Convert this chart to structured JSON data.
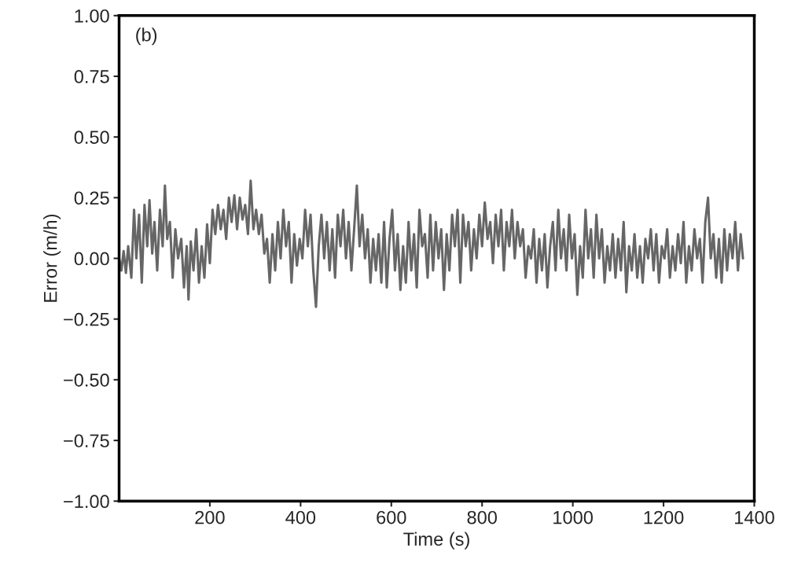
{
  "chart_data": {
    "type": "line",
    "xlabel": "Time (s)",
    "ylabel": "Error (m/h)",
    "annotations": [
      "(b)"
    ],
    "xlim": [
      0,
      1400
    ],
    "xticks": [
      200,
      400,
      600,
      800,
      1000,
      1200,
      1400
    ],
    "ylim": [
      -1,
      1
    ],
    "yticks": [
      {
        "value": -1,
        "label": "−1.00"
      },
      {
        "value": -0.75,
        "label": "−0.75"
      },
      {
        "value": -0.5,
        "label": "−0.50"
      },
      {
        "value": -0.25,
        "label": "−0.25"
      },
      {
        "value": 0,
        "label": "0.00"
      },
      {
        "value": 0.25,
        "label": "0.25"
      },
      {
        "value": 0.5,
        "label": "0.50"
      },
      {
        "value": 0.75,
        "label": "0.75"
      },
      {
        "value": 1,
        "label": "1.00"
      }
    ],
    "grid": false,
    "legend": false,
    "line_style": "solid",
    "marker": "none",
    "series": [
      {
        "color": "#666666",
        "x": [
          0,
          5,
          10,
          15,
          20,
          27,
          33,
          38,
          44,
          50,
          56,
          62,
          67,
          73,
          78,
          84,
          90,
          96,
          101,
          106,
          112,
          118,
          124,
          130,
          137,
          143,
          149,
          153,
          158,
          164,
          170,
          176,
          182,
          188,
          194,
          200,
          206,
          212,
          218,
          224,
          230,
          236,
          242,
          248,
          254,
          260,
          266,
          272,
          278,
          284,
          290,
          296,
          302,
          308,
          314,
          320,
          326,
          332,
          338,
          344,
          350,
          356,
          362,
          368,
          374,
          380,
          386,
          392,
          398,
          404,
          410,
          416,
          422,
          428,
          434,
          440,
          446,
          452,
          458,
          464,
          470,
          476,
          482,
          488,
          494,
          500,
          506,
          512,
          518,
          524,
          530,
          536,
          542,
          548,
          554,
          560,
          566,
          572,
          578,
          584,
          590,
          596,
          602,
          608,
          614,
          620,
          626,
          632,
          638,
          644,
          650,
          656,
          662,
          668,
          674,
          680,
          686,
          692,
          698,
          704,
          710,
          716,
          722,
          728,
          734,
          740,
          746,
          752,
          758,
          764,
          770,
          776,
          782,
          788,
          794,
          800,
          806,
          812,
          818,
          824,
          830,
          836,
          842,
          848,
          854,
          860,
          866,
          872,
          878,
          884,
          890,
          896,
          902,
          908,
          914,
          920,
          926,
          932,
          938,
          944,
          950,
          956,
          962,
          968,
          974,
          980,
          986,
          992,
          998,
          1004,
          1010,
          1016,
          1022,
          1028,
          1034,
          1040,
          1046,
          1052,
          1058,
          1064,
          1070,
          1076,
          1082,
          1088,
          1094,
          1100,
          1106,
          1112,
          1118,
          1124,
          1130,
          1136,
          1142,
          1148,
          1154,
          1160,
          1166,
          1172,
          1178,
          1184,
          1190,
          1196,
          1202,
          1208,
          1214,
          1220,
          1226,
          1232,
          1238,
          1244,
          1250,
          1256,
          1262,
          1268,
          1274,
          1280,
          1286,
          1292,
          1298,
          1304,
          1310,
          1316,
          1322,
          1328,
          1334,
          1340,
          1346,
          1352,
          1358,
          1364,
          1370,
          1375
        ],
        "values": [
          0.0,
          -0.05,
          0.03,
          -0.06,
          0.05,
          -0.08,
          0.2,
          0.0,
          0.18,
          -0.1,
          0.22,
          0.05,
          0.24,
          0.02,
          0.15,
          -0.05,
          0.2,
          0.05,
          0.3,
          0.08,
          0.15,
          -0.08,
          0.12,
          0.0,
          0.08,
          -0.12,
          0.05,
          -0.17,
          0.07,
          -0.05,
          0.12,
          -0.1,
          0.05,
          -0.08,
          0.14,
          -0.02,
          0.2,
          0.1,
          0.22,
          0.12,
          0.2,
          0.08,
          0.25,
          0.15,
          0.26,
          0.12,
          0.25,
          0.16,
          0.22,
          0.1,
          0.32,
          0.12,
          0.2,
          0.1,
          0.18,
          0.02,
          0.08,
          -0.1,
          0.1,
          -0.05,
          0.15,
          0.0,
          0.2,
          0.05,
          0.15,
          -0.1,
          0.1,
          -0.03,
          0.08,
          0.0,
          0.2,
          0.05,
          0.18,
          -0.05,
          -0.2,
          0.05,
          0.18,
          0.0,
          0.15,
          -0.05,
          0.12,
          -0.08,
          0.18,
          0.05,
          0.2,
          0.0,
          0.15,
          -0.05,
          0.12,
          0.3,
          0.05,
          0.18,
          0.0,
          0.12,
          -0.1,
          0.08,
          -0.05,
          0.1,
          -0.1,
          0.15,
          -0.12,
          0.08,
          0.2,
          -0.05,
          0.1,
          -0.13,
          0.05,
          -0.1,
          0.15,
          -0.05,
          0.1,
          -0.12,
          0.2,
          0.05,
          0.1,
          -0.08,
          0.18,
          -0.05,
          0.15,
          0.0,
          0.12,
          -0.13,
          0.1,
          -0.05,
          0.18,
          0.05,
          0.2,
          -0.1,
          0.18,
          0.05,
          0.15,
          -0.05,
          0.12,
          0.0,
          0.18,
          0.05,
          0.23,
          0.08,
          0.15,
          -0.02,
          0.18,
          0.05,
          0.2,
          -0.05,
          0.15,
          0.05,
          0.2,
          0.0,
          0.15,
          0.05,
          0.12,
          -0.08,
          0.05,
          0.0,
          0.12,
          -0.1,
          0.08,
          -0.05,
          0.1,
          -0.12,
          0.05,
          0.15,
          -0.05,
          0.2,
          0.0,
          0.12,
          -0.05,
          0.18,
          0.0,
          0.1,
          -0.15,
          0.05,
          -0.08,
          0.2,
          0.0,
          0.12,
          -0.08,
          0.18,
          0.0,
          0.12,
          -0.1,
          0.05,
          -0.05,
          0.1,
          -0.08,
          0.08,
          -0.05,
          0.15,
          -0.14,
          0.05,
          -0.05,
          0.1,
          -0.08,
          0.05,
          -0.1,
          0.08,
          0.0,
          0.12,
          -0.05,
          0.1,
          -0.1,
          0.05,
          0.0,
          0.12,
          -0.08,
          0.05,
          -0.05,
          0.1,
          -0.02,
          0.15,
          -0.1,
          0.05,
          -0.05,
          0.12,
          0.0,
          0.08,
          -0.1,
          0.15,
          0.25,
          0.0,
          0.1,
          -0.08,
          0.08,
          -0.1,
          0.12,
          -0.05,
          0.1,
          0.0,
          0.15,
          -0.05,
          0.1,
          0.0
        ]
      }
    ]
  }
}
